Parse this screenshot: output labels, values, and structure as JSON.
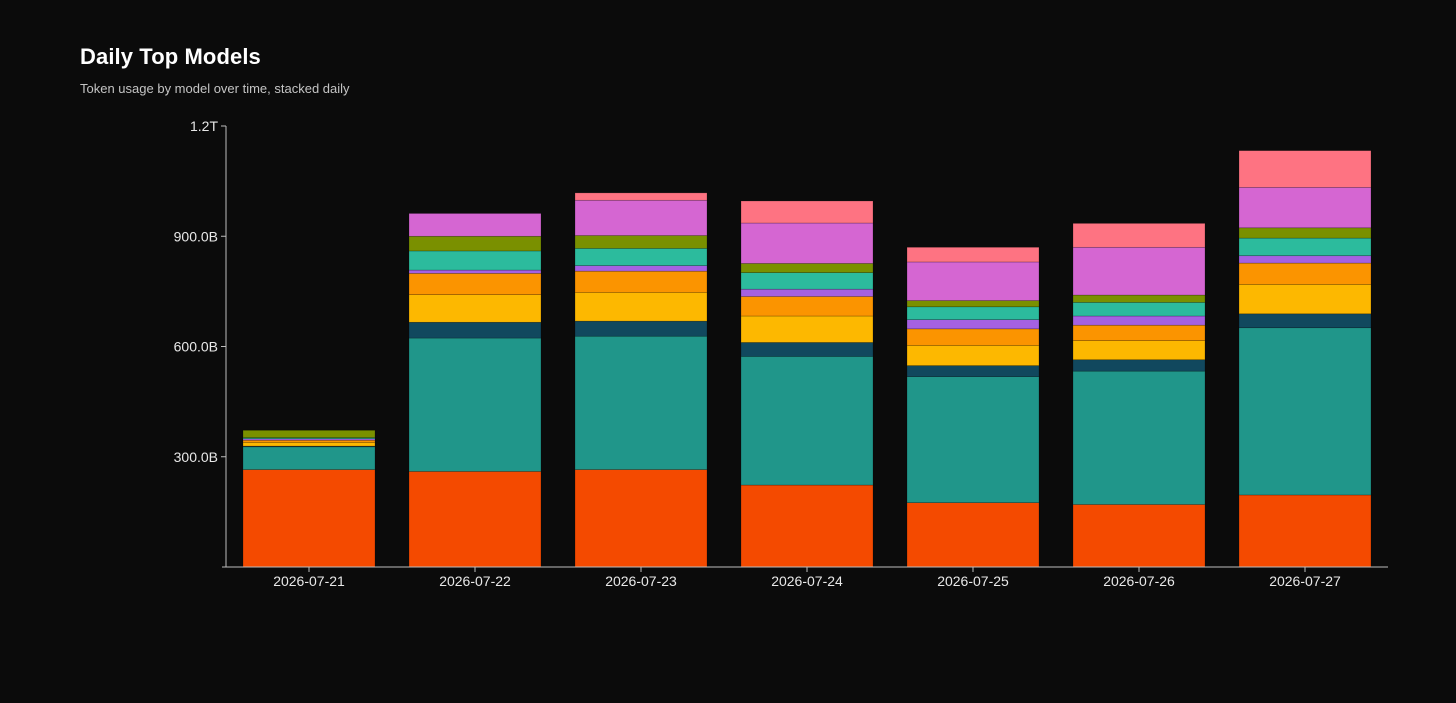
{
  "title": "Daily Top Models",
  "subtitle": "Token usage by model over time, stacked daily",
  "chart_data": {
    "type": "bar",
    "stacked": true,
    "unit": "tokens",
    "categories": [
      "2026-07-21",
      "2026-07-22",
      "2026-07-23",
      "2026-07-24",
      "2026-07-25",
      "2026-07-26",
      "2026-07-27"
    ],
    "ylim": [
      0,
      1200000000000
    ],
    "y_ticks": [
      {
        "value": 300000000000,
        "label": "300.0B"
      },
      {
        "value": 600000000000,
        "label": "600.0B"
      },
      {
        "value": 900000000000,
        "label": "900.0B"
      },
      {
        "value": 1200000000000,
        "label": "1.2T"
      }
    ],
    "grid": false,
    "legend": "none",
    "series": [
      {
        "color": "#f44a00",
        "values": [
          265000000000,
          260000000000,
          265000000000,
          223000000000,
          175000000000,
          170000000000,
          196000000000
        ]
      },
      {
        "color": "#20968a",
        "values": [
          62000000000,
          363000000000,
          363000000000,
          350000000000,
          343000000000,
          363000000000,
          455000000000
        ]
      },
      {
        "color": "#11485e",
        "values": [
          2000000000,
          43000000000,
          41000000000,
          38000000000,
          30000000000,
          31000000000,
          38000000000
        ]
      },
      {
        "color": "#fdb800",
        "values": [
          10000000000,
          75000000000,
          78000000000,
          72000000000,
          55000000000,
          52000000000,
          80000000000
        ]
      },
      {
        "color": "#fb9400",
        "values": [
          6000000000,
          58000000000,
          58000000000,
          53000000000,
          45000000000,
          42000000000,
          58000000000
        ]
      },
      {
        "color": "#a561e1",
        "values": [
          4000000000,
          9000000000,
          15000000000,
          20000000000,
          25000000000,
          25000000000,
          20000000000
        ]
      },
      {
        "color": "#2cbb9d",
        "values": [
          3000000000,
          52000000000,
          47000000000,
          45000000000,
          35000000000,
          37000000000,
          48000000000
        ]
      },
      {
        "color": "#7a9000",
        "values": [
          20000000000,
          40000000000,
          35000000000,
          25000000000,
          17000000000,
          20000000000,
          28000000000
        ]
      },
      {
        "color": "#d566d2",
        "values": [
          0,
          62000000000,
          96000000000,
          110000000000,
          105000000000,
          130000000000,
          110000000000
        ]
      },
      {
        "color": "#fe7382",
        "values": [
          0,
          0,
          20000000000,
          60000000000,
          40000000000,
          65000000000,
          100000000000
        ]
      }
    ]
  }
}
